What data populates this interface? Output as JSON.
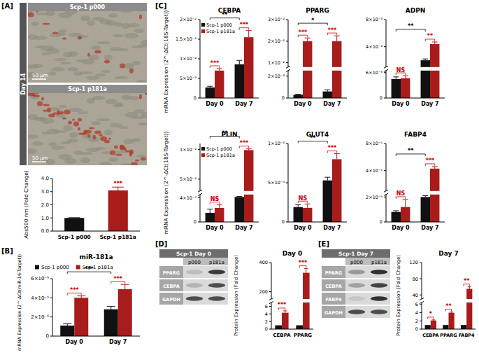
{
  "panel_labels": [
    "[A]",
    "[B]",
    "[C]",
    "[D]",
    "[E]"
  ],
  "image_row_label": "Day 14",
  "images": [
    {
      "header": "Scp-1 p000",
      "scale_bar": "50 µm"
    },
    {
      "header": "Scp-1 p181a",
      "scale_bar": "50 µm"
    }
  ],
  "blots": [
    {
      "title": "Scp-1 Day 0",
      "columns": [
        "p000",
        "p181a"
      ],
      "rows": [
        "PPARG",
        "CEBPA",
        "GAPDH"
      ]
    },
    {
      "title": "Scp-1 Day 7",
      "columns": [
        "p000",
        "p181a"
      ],
      "rows": [
        "PPARG",
        "CEBPA",
        "FABP4",
        "GAPDH"
      ]
    }
  ],
  "chart_data": [
    {
      "type": "bar",
      "y_label": "Abs500 nm (Fold Change)",
      "categories": [
        "Scp-1 p000",
        "Scp-1 p181a"
      ],
      "series": [
        {
          "values": [
            1,
            3.1
          ],
          "errors": [
            0.02,
            0.25
          ],
          "colors": [
            "#111111",
            "#a81c1c"
          ]
        }
      ],
      "ylim": [
        0,
        4
      ],
      "yticks": [
        {
          "value": 0,
          "label": "0.0"
        },
        {
          "value": 1,
          "label": "1.0"
        },
        {
          "value": 2,
          "label": "2.0"
        },
        {
          "value": 3,
          "label": "3.0"
        },
        {
          "value": 4,
          "label": "4.0"
        }
      ],
      "annotations": [
        {
          "text": "***",
          "color": "#c00000",
          "between": [
            [
              1,
              0
            ]
          ]
        }
      ]
    },
    {
      "type": "bar",
      "title": "miR-181a",
      "y_label": "mRNA Expression (2^-ΔCt(miR-16-Target))",
      "categories": [
        "Day 0",
        "Day 7"
      ],
      "series": [
        {
          "name": "Scp-1 p000",
          "color": "#111111",
          "values": [
            1.1e-05,
            2.8e-05
          ],
          "errors": [
            2e-06,
            3e-06
          ]
        },
        {
          "name": "Scp-1 p181a",
          "color": "#a81c1c",
          "values": [
            4e-05,
            4.9e-05
          ],
          "errors": [
            2e-06,
            5e-06
          ]
        }
      ],
      "ylim": [
        0,
        6e-05
      ],
      "yticks": [
        0,
        {
          "value": 2e-05,
          "label": "2×10⁻⁵"
        },
        {
          "value": 4e-05,
          "label": "4×10⁻⁵"
        },
        {
          "value": 6e-05,
          "label": "6×10⁻⁵"
        }
      ],
      "legend": "top",
      "annotations": [
        {
          "text": "***",
          "color": "#c00000",
          "between": [
            [
              0,
              0
            ],
            [
              0,
              1
            ]
          ]
        },
        {
          "text": "***",
          "color": "#c00000",
          "between": [
            [
              1,
              0
            ],
            [
              1,
              1
            ]
          ]
        },
        {
          "text": "***",
          "color": "#000000",
          "between": [
            [
              0,
              0
            ],
            [
              1,
              0
            ]
          ]
        }
      ]
    },
    {
      "type": "bar",
      "title": "CEBPA",
      "y_label": "mRNA Expression (2^-ΔCt(18S-Target))",
      "categories": [
        "Day 0",
        "Day 7"
      ],
      "series": [
        {
          "name": "Scp-1 p000",
          "color": "#111111",
          "values": [
            0.0027,
            0.0086
          ],
          "errors": [
            0.0003,
            0.001
          ]
        },
        {
          "name": "Scp-1 p181a",
          "color": "#a81c1c",
          "values": [
            0.007,
            0.0155
          ],
          "errors": [
            0.0005,
            0.0017
          ]
        }
      ],
      "ylim": [
        0,
        0.02
      ],
      "yticks": [
        0,
        {
          "value": 0.005,
          "label": "5×10⁻³"
        },
        {
          "value": 0.01,
          "label": "1×10⁻²"
        },
        {
          "value": 0.015,
          "label": "1.5×10⁻²"
        },
        {
          "value": 0.02,
          "label": "2×10⁻²"
        }
      ],
      "legend": "upper left",
      "annotations": [
        {
          "text": "***",
          "color": "#c00000",
          "between": [
            [
              0,
              0
            ],
            [
              0,
              1
            ]
          ]
        },
        {
          "text": "***",
          "color": "#c00000",
          "between": [
            [
              1,
              0
            ],
            [
              1,
              1
            ]
          ]
        },
        {
          "text": "**",
          "color": "#000000",
          "between": [
            [
              0,
              0
            ],
            [
              1,
              0
            ]
          ]
        }
      ]
    },
    {
      "type": "bar",
      "title": "PPARG",
      "categories": [
        "Day 0",
        "Day 7"
      ],
      "series": [
        {
          "color": "#111111",
          "values": [
            0.0003,
            0.0006
          ],
          "errors": [
            5e-05,
            0.00015
          ]
        },
        {
          "color": "#a81c1c",
          "values": [
            0.02,
            0.02
          ],
          "errors": [
            0.0015,
            0.0025
          ]
        }
      ],
      "ylim": [
        0,
        0.03
      ],
      "ybreak": [
        0.0025,
        0.008
      ],
      "yticks": [
        0,
        {
          "value": 0.002,
          "label": "2×10⁻³"
        },
        {
          "value": 0.01,
          "label": "1×10⁻²"
        },
        {
          "value": 0.02,
          "label": "2×10⁻²"
        },
        {
          "value": 0.03,
          "label": "3×10⁻²"
        }
      ],
      "annotations": [
        {
          "text": "***",
          "color": "#c00000",
          "between": [
            [
              0,
              0
            ],
            [
              0,
              1
            ]
          ]
        },
        {
          "text": "***",
          "color": "#c00000",
          "between": [
            [
              1,
              0
            ],
            [
              1,
              1
            ]
          ]
        },
        {
          "text": "*",
          "color": "#000000",
          "between": [
            [
              0,
              0
            ],
            [
              1,
              0
            ]
          ]
        }
      ]
    },
    {
      "type": "bar",
      "title": "ADPN",
      "categories": [
        "Day 0",
        "Day 7"
      ],
      "series": [
        {
          "color": "#111111",
          "values": [
            4.5e-06,
            0.002
          ],
          "errors": [
            5e-07,
            0.0002
          ]
        },
        {
          "color": "#a81c1c",
          "values": [
            4.7e-06,
            0.0044
          ],
          "errors": [
            6e-07,
            0.0003
          ]
        }
      ],
      "ylim": [
        0,
        0.008
      ],
      "ybreak": [
        6.5e-06,
        0.001
      ],
      "yticks": [
        0,
        {
          "value": 6e-06,
          "label": "6×10⁻⁶"
        },
        {
          "value": 0.004,
          "label": "4×10⁻³"
        },
        {
          "value": 0.008,
          "label": "8×10⁻³"
        }
      ],
      "annotations": [
        {
          "text": "NS",
          "color": "#c00000",
          "between": [
            [
              0,
              0
            ],
            [
              0,
              1
            ]
          ]
        },
        {
          "text": "**",
          "color": "#c00000",
          "between": [
            [
              1,
              0
            ],
            [
              1,
              1
            ]
          ]
        },
        {
          "text": "**",
          "color": "#000000",
          "between": [
            [
              0,
              0
            ],
            [
              1,
              0
            ]
          ]
        }
      ]
    },
    {
      "type": "bar",
      "title": "PLIN",
      "y_label": "mRNA Expression (2^-ΔCt(18S-Target))",
      "categories": [
        "Day 0",
        "Day 7"
      ],
      "series": [
        {
          "name": "Scp-1 p000",
          "color": "#111111",
          "values": [
            0.00015,
            0.00041
          ],
          "errors": [
            6e-05,
            1e-05
          ]
        },
        {
          "name": "Scp-1 p181a",
          "color": "#a81c1c",
          "values": [
            0.00023,
            0.099
          ],
          "errors": [
            5e-05,
            0.002
          ]
        }
      ],
      "ylim": [
        0,
        0.11
      ],
      "ybreak": [
        0.00045,
        0.03
      ],
      "yticks": [
        0,
        {
          "value": 0.0004,
          "label": "4×10⁻⁴"
        },
        {
          "value": 0.05,
          "label": "5×10⁻²"
        },
        {
          "value": 0.1,
          "label": "1×10⁻¹"
        }
      ],
      "legend": "upper left",
      "annotations": [
        {
          "text": "NS",
          "color": "#c00000",
          "between": [
            [
              0,
              0
            ],
            [
              0,
              1
            ]
          ]
        },
        {
          "text": "***",
          "color": "#c00000",
          "between": [
            [
              1,
              0
            ],
            [
              1,
              1
            ]
          ]
        },
        {
          "text": "**",
          "color": "#000000",
          "between": [
            [
              0,
              0
            ],
            [
              1,
              0
            ]
          ]
        }
      ]
    },
    {
      "type": "bar",
      "title": "GLUT4",
      "categories": [
        "Day 0",
        "Day 7"
      ],
      "series": [
        {
          "color": "#111111",
          "values": [
            0.00019,
            0.00053
          ],
          "errors": [
            3e-05,
            4e-05
          ]
        },
        {
          "color": "#a81c1c",
          "values": [
            0.00018,
            0.0008
          ],
          "errors": [
            5e-05,
            7e-05
          ]
        }
      ],
      "ylim": [
        0,
        0.001
      ],
      "yticks": [
        0,
        {
          "value": 0.0005,
          "label": "5×10⁻⁴"
        },
        {
          "value": 0.001,
          "label": "1×10⁻³"
        }
      ],
      "annotations": [
        {
          "text": "NS",
          "color": "#c00000",
          "between": [
            [
              0,
              0
            ],
            [
              0,
              1
            ]
          ]
        },
        {
          "text": "***",
          "color": "#c00000",
          "between": [
            [
              1,
              0
            ],
            [
              1,
              1
            ]
          ]
        },
        {
          "text": "**",
          "color": "#000000",
          "between": [
            [
              0,
              0
            ],
            [
              1,
              0
            ]
          ]
        }
      ]
    },
    {
      "type": "bar",
      "title": "FABP4",
      "categories": [
        "Day 0",
        "Day 7"
      ],
      "series": [
        {
          "color": "#111111",
          "values": [
            8e-07,
            2e-06
          ],
          "errors": [
            1e-07,
            1e-07
          ]
        },
        {
          "color": "#a81c1c",
          "values": [
            1.2e-06,
            4.3e-05
          ],
          "errors": [
            6e-07,
            3e-06
          ]
        }
      ],
      "ylim": [
        0,
        8e-05
      ],
      "ybreak": [
        2.2e-06,
        1e-05
      ],
      "yticks": [
        0,
        {
          "value": 2e-06,
          "label": "2×10⁻⁶"
        },
        {
          "value": 4e-05,
          "label": "4×10⁻⁵"
        },
        {
          "value": 8e-05,
          "label": "8×10⁻⁵"
        }
      ],
      "annotations": [
        {
          "text": "NS",
          "color": "#c00000",
          "between": [
            [
              0,
              0
            ],
            [
              0,
              1
            ]
          ]
        },
        {
          "text": "***",
          "color": "#c00000",
          "between": [
            [
              1,
              0
            ],
            [
              1,
              1
            ]
          ]
        },
        {
          "text": "**",
          "color": "#000000",
          "between": [
            [
              0,
              0
            ],
            [
              1,
              0
            ]
          ]
        }
      ]
    },
    {
      "type": "bar",
      "title": "Day 0",
      "y_label": "Protein Expression (Fold Change)",
      "categories": [
        "CEBPA",
        "PPARG"
      ],
      "series": [
        {
          "color": "#111111",
          "values": [
            1,
            1
          ]
        },
        {
          "color": "#a81c1c",
          "values": [
            4.3,
            330
          ],
          "errors": [
            0.5,
            30
          ]
        }
      ],
      "ylim": [
        0,
        400
      ],
      "ybreak": [
        7,
        150
      ],
      "yticks": [
        0,
        2,
        4,
        6,
        200,
        400
      ],
      "annotations": [
        {
          "text": "***",
          "color": "#c00000",
          "between": [
            [
              0,
              0
            ],
            [
              0,
              1
            ]
          ]
        },
        {
          "text": "***",
          "color": "#c00000",
          "between": [
            [
              1,
              0
            ],
            [
              1,
              1
            ]
          ]
        }
      ]
    },
    {
      "type": "bar",
      "title": "Day 7",
      "y_label": "Protein Expression (Fold Change)",
      "categories": [
        "CEBPA",
        "PPARG",
        "FABP4"
      ],
      "series": [
        {
          "color": "#111111",
          "values": [
            1,
            1,
            1
          ]
        },
        {
          "color": "#a81c1c",
          "values": [
            2.1,
            4.0,
            55
          ],
          "errors": [
            0.15,
            0.2,
            5
          ]
        }
      ],
      "ylim": [
        0,
        120
      ],
      "ybreak": [
        6.5,
        30
      ],
      "yticks": [
        0,
        2,
        4,
        6,
        40,
        80,
        120
      ],
      "annotations": [
        {
          "text": "*",
          "color": "#c00000",
          "between": [
            [
              0,
              0
            ],
            [
              0,
              1
            ]
          ]
        },
        {
          "text": "**",
          "color": "#c00000",
          "between": [
            [
              1,
              0
            ],
            [
              1,
              1
            ]
          ]
        },
        {
          "text": "**",
          "color": "#c00000",
          "between": [
            [
              2,
              0
            ],
            [
              2,
              1
            ]
          ]
        }
      ]
    }
  ]
}
